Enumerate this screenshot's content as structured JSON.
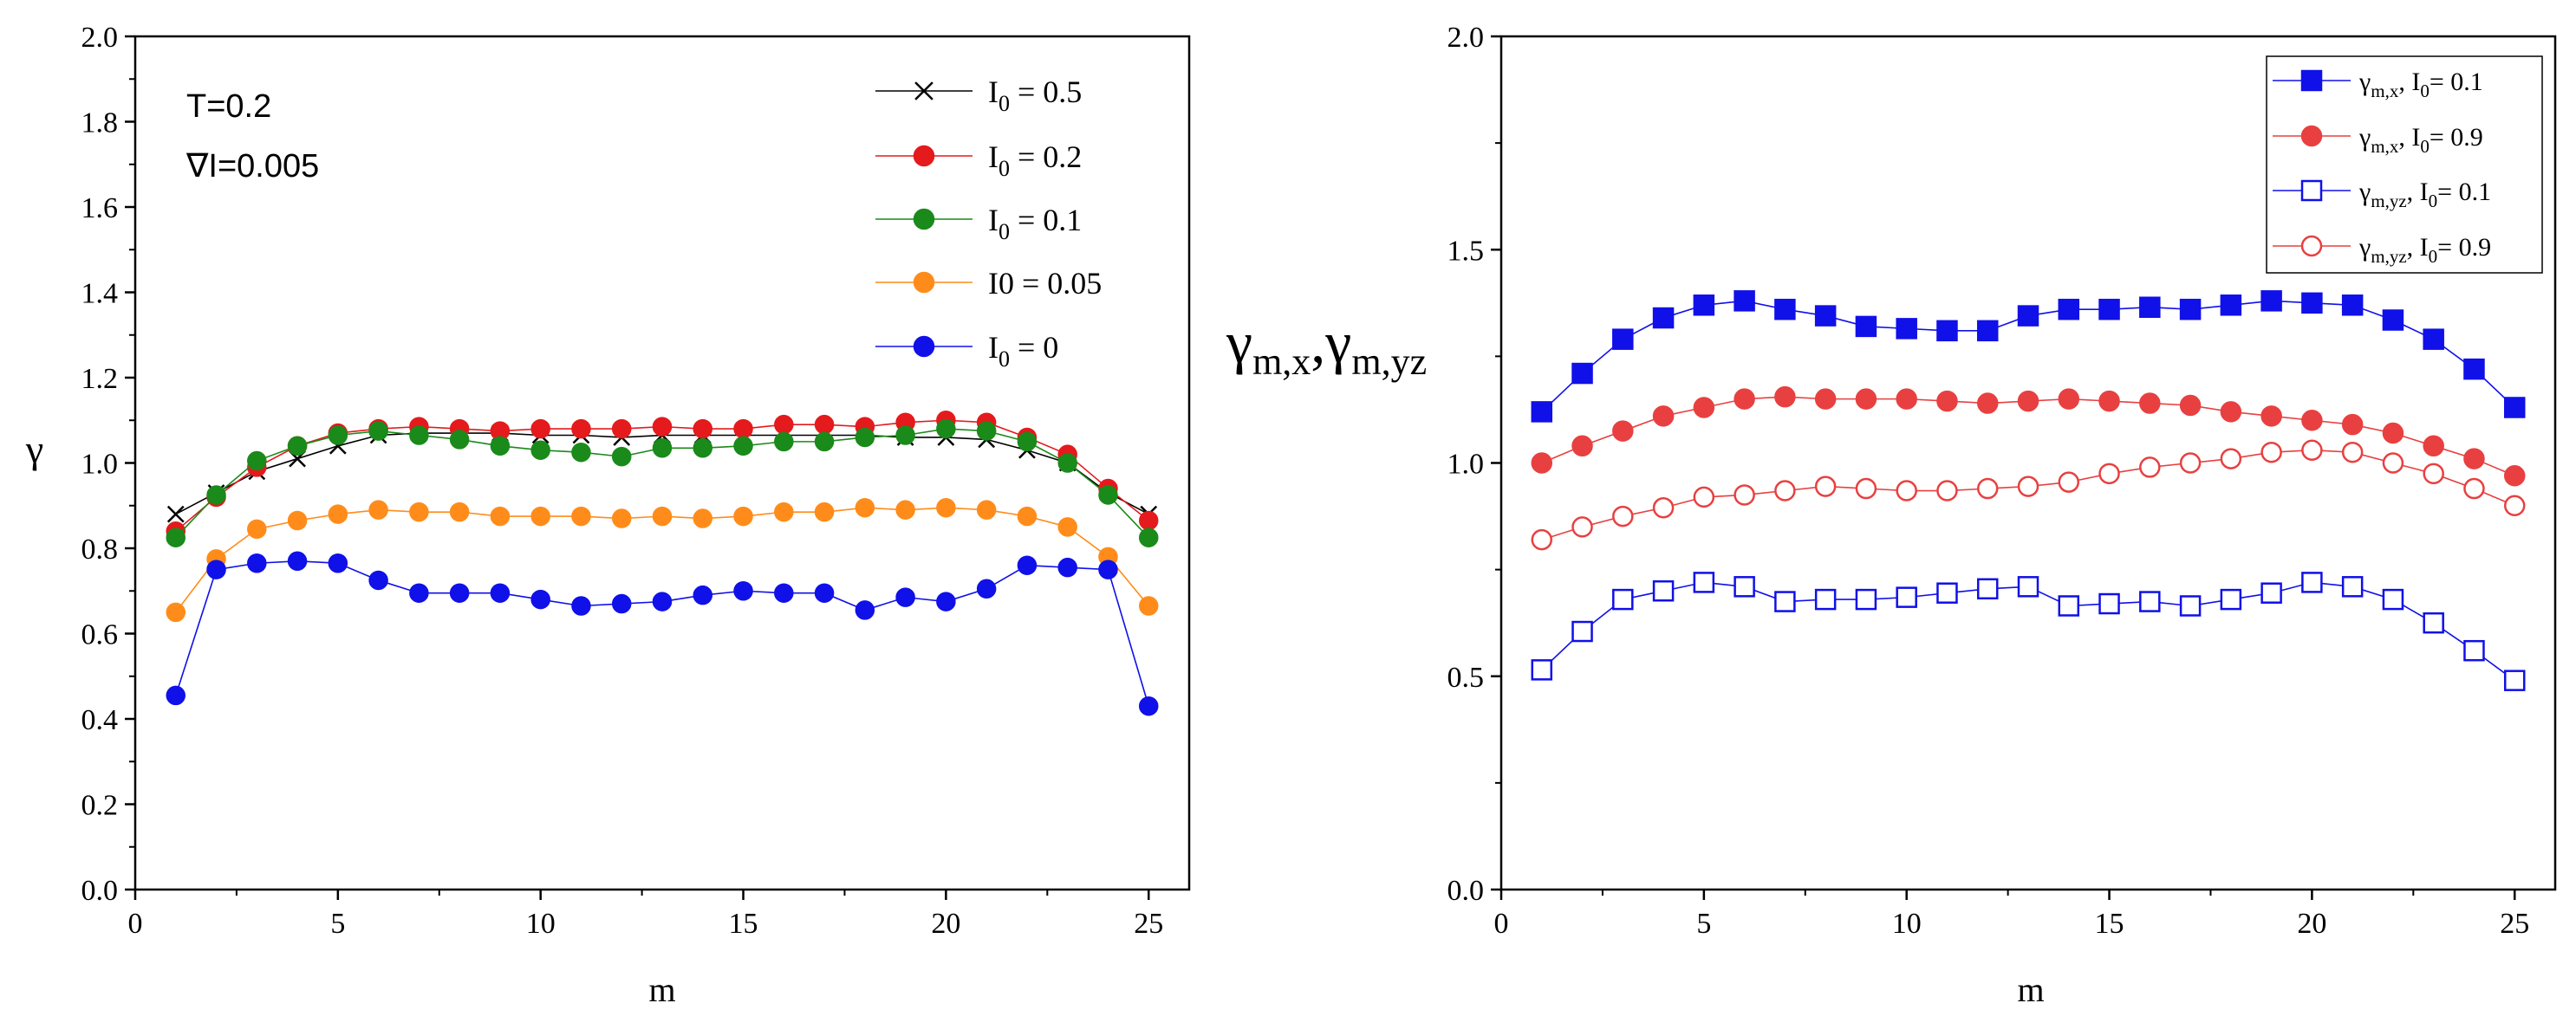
{
  "chart_data": [
    {
      "type": "line",
      "title": "",
      "xlabel": "m",
      "ylabel": "γ",
      "xlim": [
        0,
        26
      ],
      "ylim": [
        0.0,
        2.0
      ],
      "xticks": [
        0,
        5,
        10,
        15,
        20,
        25
      ],
      "yticks": [
        0.0,
        0.2,
        0.4,
        0.6,
        0.8,
        1.0,
        1.2,
        1.4,
        1.6,
        1.8,
        2.0
      ],
      "xtick_labels": [
        "0",
        "5",
        "10",
        "15",
        "20",
        "25"
      ],
      "ytick_labels": [
        "0.0",
        "0.2",
        "0.4",
        "0.6",
        "0.8",
        "1.0",
        "1.2",
        "1.4",
        "1.6",
        "1.8",
        "2.0"
      ],
      "annotations": [
        "T=0.2",
        "∇I=0.005"
      ],
      "legend_position": "top-right",
      "x": [
        1,
        2,
        3,
        4,
        5,
        6,
        7,
        8,
        9,
        10,
        11,
        12,
        13,
        14,
        15,
        16,
        17,
        18,
        19,
        20,
        21,
        22,
        23,
        24,
        25
      ],
      "series": [
        {
          "name": "I0 = 0.5",
          "legend": {
            "pre": "I",
            "sub": "0",
            "post": " = 0.5"
          },
          "color": "#000000",
          "marker": "x",
          "filled": false,
          "values": [
            0.88,
            0.93,
            0.98,
            1.01,
            1.04,
            1.065,
            1.07,
            1.07,
            1.07,
            1.065,
            1.065,
            1.06,
            1.065,
            1.065,
            1.065,
            1.065,
            1.065,
            1.065,
            1.06,
            1.06,
            1.055,
            1.03,
            1.0,
            0.93,
            0.88
          ]
        },
        {
          "name": "I0 = 0.2",
          "legend": {
            "pre": "I",
            "sub": "0",
            "post": " = 0.2"
          },
          "color": "#e41a1c",
          "marker": "circle",
          "filled": true,
          "values": [
            0.84,
            0.92,
            0.99,
            1.04,
            1.07,
            1.08,
            1.085,
            1.08,
            1.075,
            1.08,
            1.08,
            1.08,
            1.085,
            1.08,
            1.08,
            1.09,
            1.09,
            1.085,
            1.095,
            1.1,
            1.095,
            1.06,
            1.02,
            0.94,
            0.865
          ]
        },
        {
          "name": "I0 = 0.1",
          "legend": {
            "pre": "I",
            "sub": "0",
            "post": " = 0.1"
          },
          "color": "#1a8a1a",
          "marker": "circle",
          "filled": true,
          "values": [
            0.825,
            0.925,
            1.005,
            1.04,
            1.065,
            1.075,
            1.065,
            1.055,
            1.04,
            1.03,
            1.025,
            1.015,
            1.035,
            1.035,
            1.04,
            1.05,
            1.05,
            1.06,
            1.065,
            1.08,
            1.075,
            1.05,
            1.0,
            0.925,
            0.825
          ]
        },
        {
          "name": "I0 = 0.05",
          "legend": {
            "pre": "I0",
            "sub": "",
            "post": " = 0.05"
          },
          "color": "#ff8c1a",
          "marker": "circle",
          "filled": true,
          "values": [
            0.65,
            0.775,
            0.845,
            0.865,
            0.88,
            0.89,
            0.885,
            0.885,
            0.875,
            0.875,
            0.875,
            0.87,
            0.875,
            0.87,
            0.875,
            0.885,
            0.885,
            0.895,
            0.89,
            0.895,
            0.89,
            0.875,
            0.85,
            0.78,
            0.665
          ]
        },
        {
          "name": "I0 = 0",
          "legend": {
            "pre": "I",
            "sub": "0",
            "post": " = 0"
          },
          "color": "#1010e8",
          "marker": "circle",
          "filled": true,
          "values": [
            0.455,
            0.75,
            0.765,
            0.77,
            0.765,
            0.725,
            0.695,
            0.695,
            0.695,
            0.68,
            0.665,
            0.67,
            0.675,
            0.69,
            0.7,
            0.695,
            0.695,
            0.655,
            0.685,
            0.675,
            0.705,
            0.76,
            0.755,
            0.75,
            0.43
          ]
        }
      ]
    },
    {
      "type": "line",
      "title": "",
      "xlabel": "m",
      "ylabel": "γm,x,γm,yz",
      "ylabel_parts": {
        "sym1": "γ",
        "sub1": "m,x",
        "sep": ",",
        "sym2": "γ",
        "sub2": "m,yz"
      },
      "xlim": [
        0,
        26
      ],
      "ylim": [
        0.0,
        2.0
      ],
      "xticks": [
        0,
        5,
        10,
        15,
        20,
        25
      ],
      "yticks": [
        0.0,
        0.5,
        1.0,
        1.5,
        2.0
      ],
      "xtick_labels": [
        "0",
        "5",
        "10",
        "15",
        "20",
        "25"
      ],
      "ytick_labels": [
        "0.0",
        "0.5",
        "1.0",
        "1.5",
        "2.0"
      ],
      "legend_position": "top-right",
      "x": [
        1,
        2,
        3,
        4,
        5,
        6,
        7,
        8,
        9,
        10,
        11,
        12,
        13,
        14,
        15,
        16,
        17,
        18,
        19,
        20,
        21,
        22,
        23,
        24,
        25
      ],
      "series": [
        {
          "name": "γm,x, I0= 0.1",
          "legend": {
            "sym": "γ",
            "sub": "m,x",
            "mid": ", I",
            "sub2": "0",
            "post": "= 0.1"
          },
          "color": "#1010e8",
          "marker": "square",
          "filled": true,
          "values": [
            1.12,
            1.21,
            1.29,
            1.34,
            1.37,
            1.38,
            1.36,
            1.345,
            1.32,
            1.315,
            1.31,
            1.31,
            1.345,
            1.36,
            1.36,
            1.365,
            1.36,
            1.37,
            1.38,
            1.375,
            1.37,
            1.335,
            1.29,
            1.22,
            1.13
          ]
        },
        {
          "name": "γm,x, I0= 0.9",
          "legend": {
            "sym": "γ",
            "sub": "m,x",
            "mid": ", I",
            "sub2": "0",
            "post": "= 0.9"
          },
          "color": "#e84040",
          "marker": "circle",
          "filled": true,
          "values": [
            1.0,
            1.04,
            1.075,
            1.11,
            1.13,
            1.15,
            1.155,
            1.15,
            1.15,
            1.15,
            1.145,
            1.14,
            1.145,
            1.15,
            1.145,
            1.14,
            1.135,
            1.12,
            1.11,
            1.1,
            1.09,
            1.07,
            1.04,
            1.01,
            0.97
          ]
        },
        {
          "name": "γm,yz, I0= 0.1",
          "legend": {
            "sym": "γ",
            "sub": "m,yz",
            "mid": ", I",
            "sub2": "0",
            "post": "= 0.1"
          },
          "color": "#1010e8",
          "marker": "square",
          "filled": false,
          "values": [
            0.515,
            0.605,
            0.68,
            0.7,
            0.72,
            0.71,
            0.675,
            0.68,
            0.68,
            0.685,
            0.695,
            0.705,
            0.71,
            0.665,
            0.67,
            0.675,
            0.665,
            0.68,
            0.695,
            0.72,
            0.71,
            0.68,
            0.625,
            0.56,
            0.49
          ]
        },
        {
          "name": "γm,yz, I0= 0.9",
          "legend": {
            "sym": "γ",
            "sub": "m,yz",
            "mid": ", I",
            "sub2": "0",
            "post": "= 0.9"
          },
          "color": "#e84040",
          "marker": "circle",
          "filled": false,
          "values": [
            0.82,
            0.85,
            0.875,
            0.895,
            0.92,
            0.925,
            0.935,
            0.945,
            0.94,
            0.935,
            0.935,
            0.94,
            0.945,
            0.955,
            0.975,
            0.99,
            1.0,
            1.01,
            1.025,
            1.03,
            1.025,
            1.0,
            0.975,
            0.94,
            0.9
          ]
        }
      ]
    }
  ]
}
